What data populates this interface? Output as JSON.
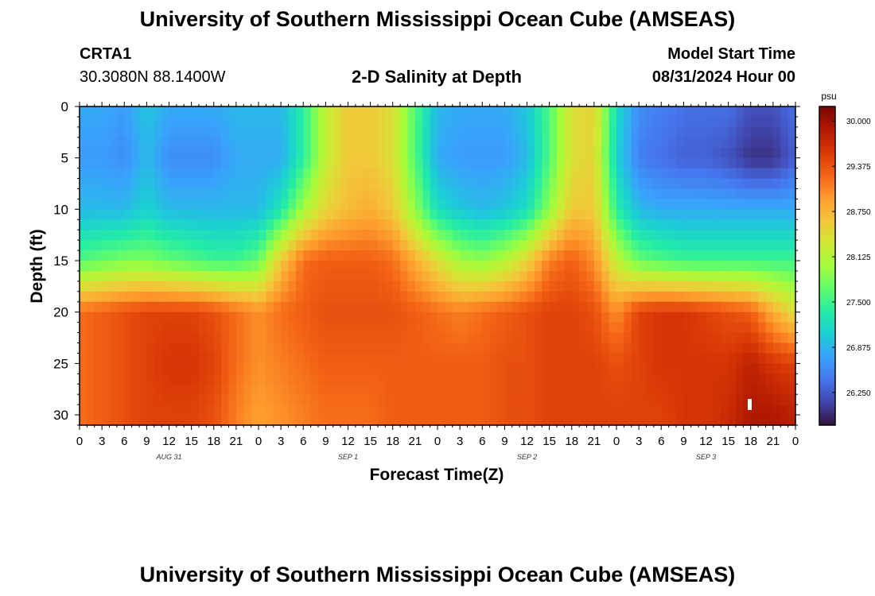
{
  "header": {
    "title": "University of Southern Mississippi Ocean Cube (AMSEAS)",
    "station_id": "CRTA1",
    "coords": "30.3080N  88.1400W",
    "plot_title": "2-D Salinity at Depth",
    "model_start_label": "Model Start Time",
    "model_start_value": "08/31/2024 Hour 00"
  },
  "footer": {
    "title": "University of Southern Mississippi Ocean Cube (AMSEAS)"
  },
  "chart_data": {
    "type": "heatmap",
    "title": "2-D Salinity at Depth",
    "xlabel": "Forecast Time(Z)",
    "ylabel": "Depth (ft)",
    "x_tick_labels": [
      "0",
      "3",
      "6",
      "9",
      "12",
      "15",
      "18",
      "21",
      "0",
      "3",
      "6",
      "9",
      "12",
      "15",
      "18",
      "21",
      "0",
      "3",
      "6",
      "9",
      "12",
      "15",
      "18",
      "21",
      "0",
      "3",
      "6",
      "9",
      "12",
      "15",
      "18",
      "21",
      "0"
    ],
    "date_labels": [
      {
        "label": "AUG 31",
        "hour": 12
      },
      {
        "label": "SEP 1",
        "hour": 36
      },
      {
        "label": "SEP 2",
        "hour": 60
      },
      {
        "label": "SEP 3",
        "hour": 84
      }
    ],
    "xlim_hours": [
      0,
      96
    ],
    "y_ticks": [
      0,
      5,
      10,
      15,
      20,
      25,
      30
    ],
    "ylim_ft": [
      0,
      31
    ],
    "colorbar": {
      "unit": "psu",
      "ticks": [
        "30.000",
        "29.375",
        "28.750",
        "28.125",
        "27.500",
        "26.875",
        "26.250"
      ],
      "range": [
        25.8,
        30.2
      ],
      "colors": [
        "#30123b",
        "#4145ab",
        "#4675ed",
        "#39a2fc",
        "#1bcfd4",
        "#24eca6",
        "#61fc6c",
        "#a4fc3b",
        "#d1e834",
        "#f3c63a",
        "#fe9b2d",
        "#f36315",
        "#d93806",
        "#b11901",
        "#7a0403"
      ]
    },
    "time_hours": [
      0,
      3,
      6,
      9,
      12,
      15,
      18,
      21,
      24,
      27,
      30,
      33,
      36,
      39,
      42,
      45,
      48,
      51,
      54,
      57,
      60,
      63,
      66,
      69,
      72,
      75,
      78,
      81,
      84,
      87,
      90,
      93,
      96
    ],
    "depth_ft": [
      0,
      5,
      10,
      15,
      20,
      25,
      30
    ],
    "salinity_psu": [
      [
        26.8,
        26.8,
        26.7,
        27.0,
        26.8,
        26.8,
        26.8,
        26.9,
        26.9,
        26.9,
        27.4,
        28.2,
        28.6,
        28.6,
        28.4,
        27.6,
        26.9,
        26.8,
        26.8,
        26.8,
        27.0,
        27.6,
        28.4,
        28.5,
        27.2,
        26.6,
        26.5,
        26.4,
        26.4,
        26.4,
        26.2,
        26.2,
        26.4
      ],
      [
        26.7,
        26.7,
        26.6,
        26.9,
        26.6,
        26.6,
        26.6,
        26.8,
        26.8,
        26.8,
        27.4,
        28.2,
        28.6,
        28.6,
        28.4,
        27.6,
        26.8,
        26.7,
        26.7,
        26.7,
        26.9,
        27.6,
        28.4,
        28.5,
        27.1,
        26.5,
        26.4,
        26.3,
        26.3,
        26.2,
        26.0,
        26.0,
        26.3
      ],
      [
        26.9,
        26.9,
        26.9,
        27.1,
        26.9,
        26.9,
        26.9,
        26.9,
        26.9,
        27.3,
        28.0,
        28.5,
        28.7,
        28.8,
        28.6,
        27.9,
        27.2,
        27.0,
        26.9,
        27.0,
        27.2,
        27.9,
        28.6,
        28.6,
        27.4,
        26.9,
        26.8,
        26.8,
        26.8,
        26.8,
        26.8,
        26.8,
        26.8
      ],
      [
        27.6,
        27.7,
        27.8,
        27.8,
        27.7,
        27.6,
        27.5,
        27.5,
        27.7,
        28.6,
        29.2,
        29.3,
        29.3,
        29.3,
        29.2,
        28.8,
        28.4,
        28.0,
        27.9,
        28.1,
        28.5,
        29.1,
        29.3,
        29.0,
        28.2,
        27.7,
        27.6,
        27.5,
        27.5,
        27.5,
        27.5,
        27.5,
        27.5
      ],
      [
        29.2,
        29.3,
        29.4,
        29.5,
        29.5,
        29.5,
        29.4,
        29.2,
        29.0,
        29.2,
        29.3,
        29.4,
        29.4,
        29.4,
        29.4,
        29.3,
        29.2,
        29.1,
        29.2,
        29.3,
        29.4,
        29.5,
        29.5,
        29.4,
        29.0,
        29.5,
        29.6,
        29.6,
        29.5,
        29.4,
        29.3,
        28.8,
        28.4
      ],
      [
        29.2,
        29.3,
        29.4,
        29.5,
        29.6,
        29.6,
        29.5,
        29.2,
        29.0,
        29.1,
        29.2,
        29.3,
        29.3,
        29.3,
        29.3,
        29.3,
        29.3,
        29.3,
        29.3,
        29.4,
        29.4,
        29.5,
        29.5,
        29.5,
        29.4,
        29.5,
        29.6,
        29.6,
        29.6,
        29.6,
        29.8,
        29.6,
        29.5
      ],
      [
        29.2,
        29.3,
        29.4,
        29.5,
        29.5,
        29.5,
        29.4,
        29.1,
        28.9,
        29.0,
        29.1,
        29.2,
        29.2,
        29.2,
        29.3,
        29.3,
        29.3,
        29.3,
        29.3,
        29.4,
        29.4,
        29.5,
        29.5,
        29.5,
        29.5,
        29.5,
        29.5,
        29.6,
        29.6,
        29.7,
        29.9,
        29.9,
        29.8
      ]
    ]
  }
}
